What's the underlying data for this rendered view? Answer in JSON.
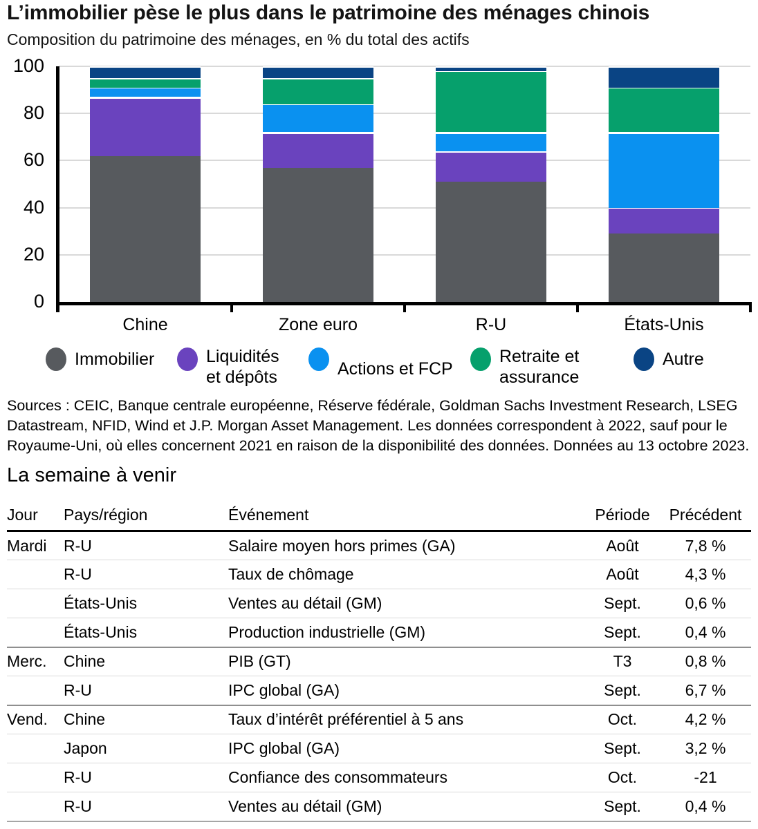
{
  "header": {
    "title": "L’immobilier pèse le plus dans le patrimoine des ménages chinois",
    "subtitle": "Composition du patrimoine des ménages, en % du total des actifs"
  },
  "chart_data": {
    "type": "bar",
    "stacked": true,
    "title": "L’immobilier pèse le plus dans le patrimoine des ménages chinois",
    "subtitle": "Composition du patrimoine des ménages, en % du total des actifs",
    "categories": [
      "Chine",
      "Zone euro",
      "R-U",
      "États-Unis"
    ],
    "series": [
      {
        "name": "Immobilier",
        "color": "#575a5e",
        "values": [
          62,
          57,
          51,
          29
        ]
      },
      {
        "name": "Liquidités et dépôts",
        "color": "#6a43be",
        "values": [
          25,
          15,
          13,
          11
        ]
      },
      {
        "name": "Actions et FCP",
        "color": "#0a91f0",
        "values": [
          4,
          12,
          8,
          32
        ]
      },
      {
        "name": "Retraite et assurance",
        "color": "#06a06c",
        "values": [
          4,
          11,
          26,
          19
        ]
      },
      {
        "name": "Autre",
        "color": "#0a4484",
        "values": [
          5,
          5,
          2,
          9
        ]
      }
    ],
    "xlabel": "",
    "ylabel": "",
    "ylim": [
      0,
      100
    ],
    "yticks": [
      0,
      20,
      40,
      60,
      80,
      100
    ],
    "grid": true,
    "legend_position": "bottom",
    "gridline_color": "#d9d9d9",
    "axis_color": "#000000"
  },
  "sources": "Sources : CEIC, Banque centrale européenne, Réserve fédérale, Goldman Sachs Investment Research, LSEG Datastream, NFID, Wind et J.P. Morgan Asset Management. Les données correspondent à 2022, sauf pour le Royaume-Uni, où elles concernent 2021 en raison de la disponibilité des données. Données au 13 octobre 2023.",
  "calendar": {
    "section_title": "La semaine à venir",
    "headers": [
      "Jour",
      "Pays/région",
      "Événement",
      "Période",
      "Précédent"
    ],
    "rows": [
      {
        "jour": "Mardi",
        "pays": "R-U",
        "evenement": "Salaire moyen hors primes (GA)",
        "periode": "Août",
        "precedent": "7,8 %"
      },
      {
        "jour": "",
        "pays": "R-U",
        "evenement": "Taux de chômage",
        "periode": "Août",
        "precedent": "4,3 %"
      },
      {
        "jour": "",
        "pays": "États-Unis",
        "evenement": "Ventes au détail (GM)",
        "periode": "Sept.",
        "precedent": "0,6 %"
      },
      {
        "jour": "",
        "pays": "États-Unis",
        "evenement": "Production industrielle (GM)",
        "periode": "Sept.",
        "precedent": "0,4 %"
      },
      {
        "jour": "Merc.",
        "pays": "Chine",
        "evenement": "PIB (GT)",
        "periode": "T3",
        "precedent": "0,8 %"
      },
      {
        "jour": "",
        "pays": "R-U",
        "evenement": "IPC global (GA)",
        "periode": "Sept.",
        "precedent": "6,7 %"
      },
      {
        "jour": "Vend.",
        "pays": "Chine",
        "evenement": "Taux d’intérêt préférentiel à 5 ans",
        "periode": "Oct.",
        "precedent": "4,2 %"
      },
      {
        "jour": "",
        "pays": "Japon",
        "evenement": "IPC global (GA)",
        "periode": "Sept.",
        "precedent": "3,2 %"
      },
      {
        "jour": "",
        "pays": "R-U",
        "evenement": "Confiance des consommateurs",
        "periode": "Oct.",
        "precedent": "-21"
      },
      {
        "jour": "",
        "pays": "R-U",
        "evenement": "Ventes au détail (GM)",
        "periode": "Sept.",
        "precedent": "0,4 %"
      }
    ]
  }
}
